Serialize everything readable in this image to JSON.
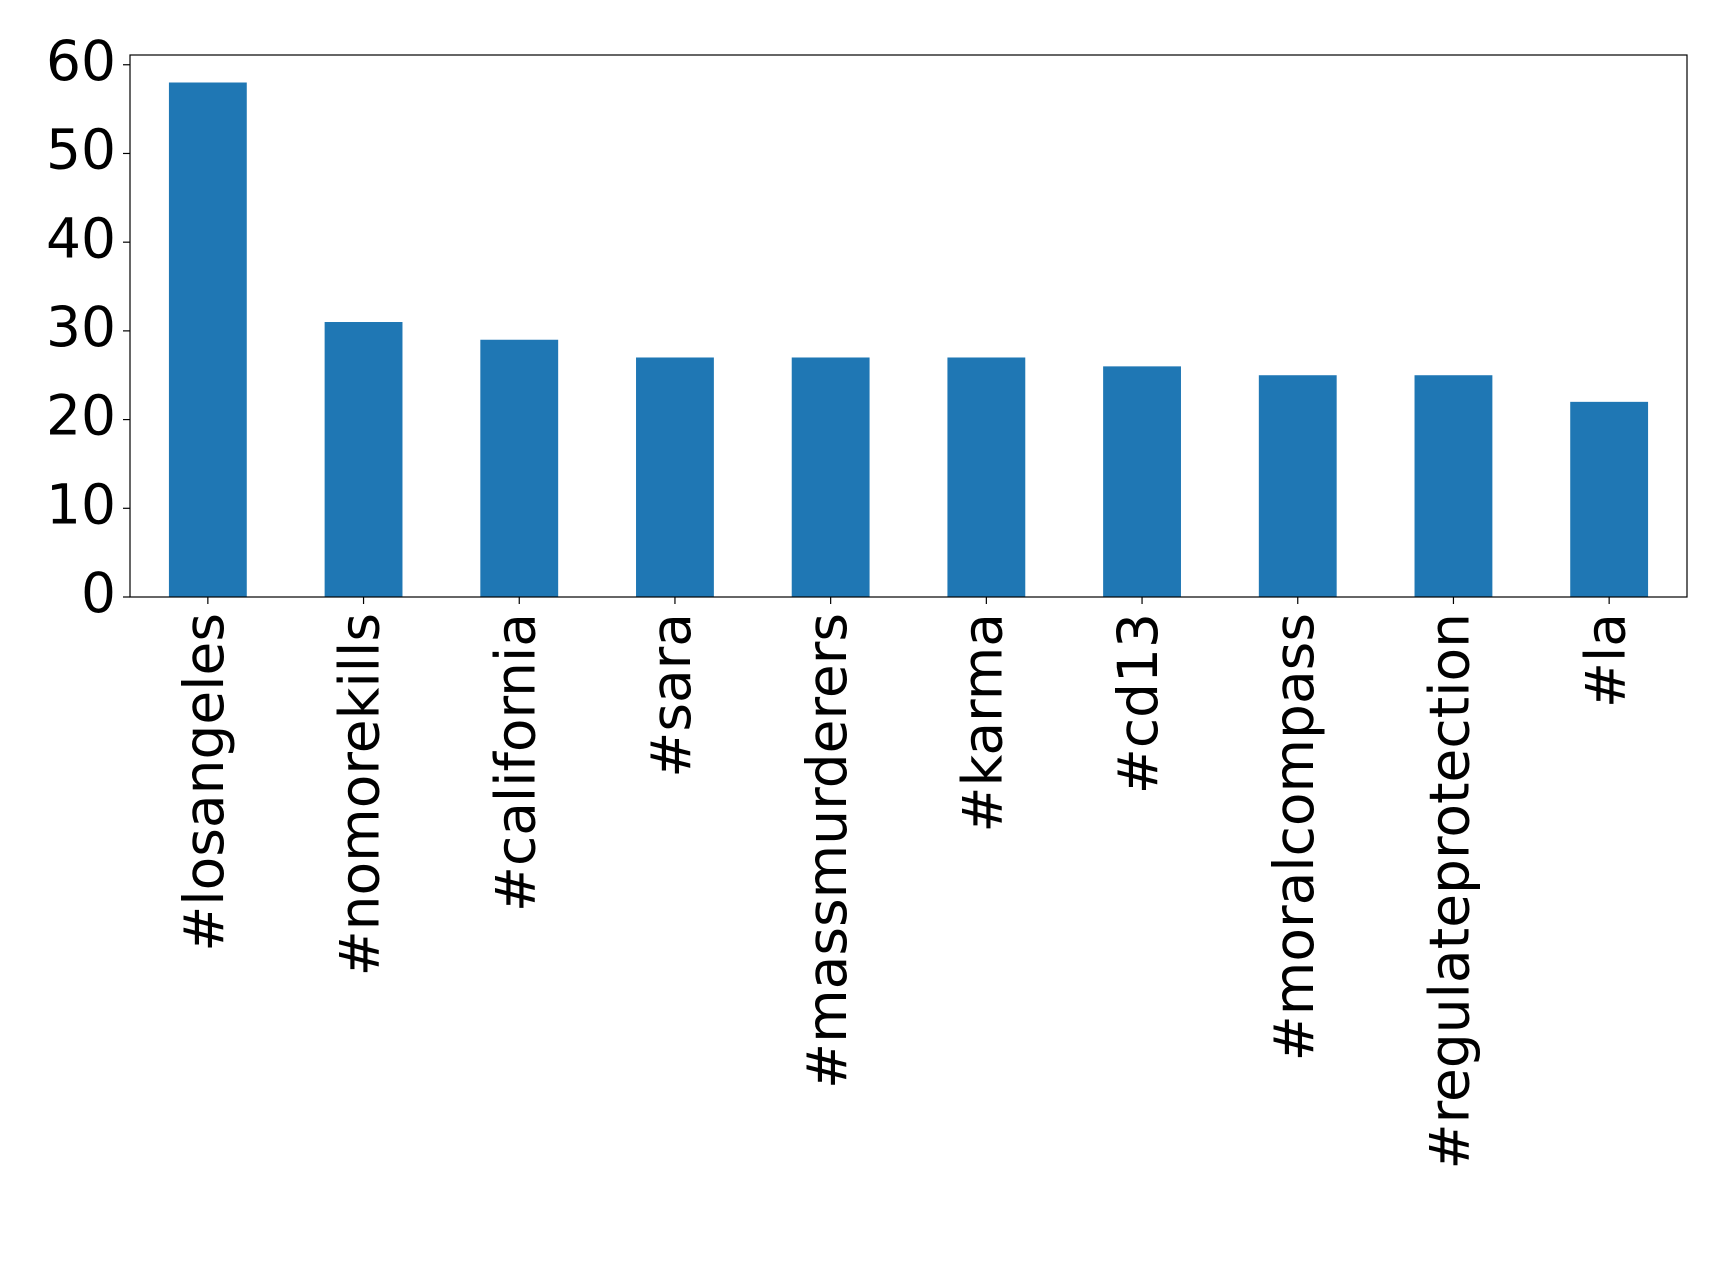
{
  "chart_data": {
    "type": "bar",
    "categories": [
      "#losangeles",
      "#nomorekills",
      "#california",
      "#sara",
      "#massmurderers",
      "#karma",
      "#cd13",
      "#moralcompass",
      "#regulateprotection",
      "#la"
    ],
    "values": [
      58,
      31,
      29,
      27,
      27,
      27,
      26,
      25,
      25,
      22
    ],
    "color": "#1f77b4",
    "ylim": [
      0,
      61.1
    ],
    "yticks": [
      0,
      10,
      20,
      30,
      40,
      50,
      60
    ],
    "grid": false
  }
}
